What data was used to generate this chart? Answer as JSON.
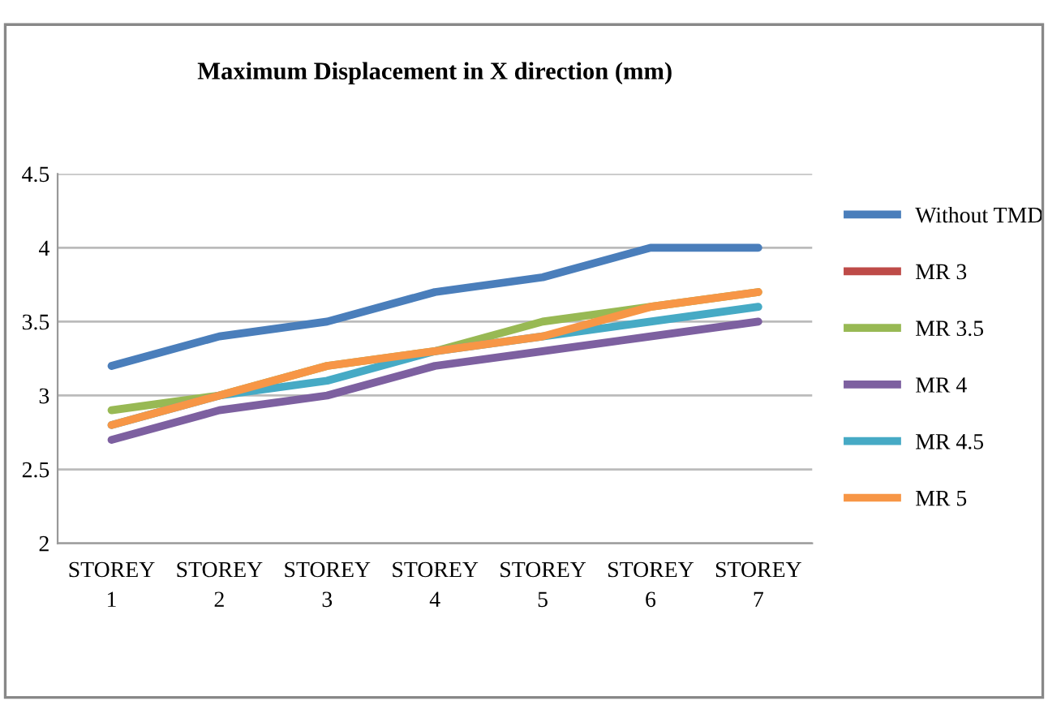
{
  "chart_data": {
    "type": "line",
    "title": "Maximum Displacement in X direction (mm)",
    "categories": [
      "STOREY\n1",
      "STOREY\n2",
      "STOREY\n3",
      "STOREY\n4",
      "STOREY\n5",
      "STOREY\n6",
      "STOREY\n7"
    ],
    "series": [
      {
        "name": "Without TMD",
        "color": "#4a7ebb",
        "values": [
          3.2,
          3.4,
          3.5,
          3.7,
          3.8,
          4.0,
          4.0
        ]
      },
      {
        "name": "MR 3",
        "color": "#be4b48",
        "values": [
          null,
          null,
          null,
          null,
          null,
          null,
          null
        ]
      },
      {
        "name": "MR 3.5",
        "color": "#98b954",
        "values": [
          2.9,
          3.0,
          3.2,
          3.3,
          3.5,
          3.6,
          3.7
        ]
      },
      {
        "name": "MR 4",
        "color": "#7d60a0",
        "values": [
          2.7,
          2.9,
          3.0,
          3.2,
          3.3,
          3.4,
          3.5
        ]
      },
      {
        "name": "MR 4.5",
        "color": "#46aac5",
        "values": [
          2.8,
          3.0,
          3.1,
          3.3,
          3.4,
          3.5,
          3.6
        ]
      },
      {
        "name": "MR 5",
        "color": "#f79646",
        "values": [
          2.8,
          3.0,
          3.2,
          3.3,
          3.4,
          3.6,
          3.7
        ]
      }
    ],
    "ylim": [
      2,
      4.5
    ],
    "yticks": [
      2,
      2.5,
      3,
      3.5,
      4,
      4.5
    ],
    "grid": "y",
    "legend": "right",
    "marker": "none",
    "line_style": "solid"
  }
}
